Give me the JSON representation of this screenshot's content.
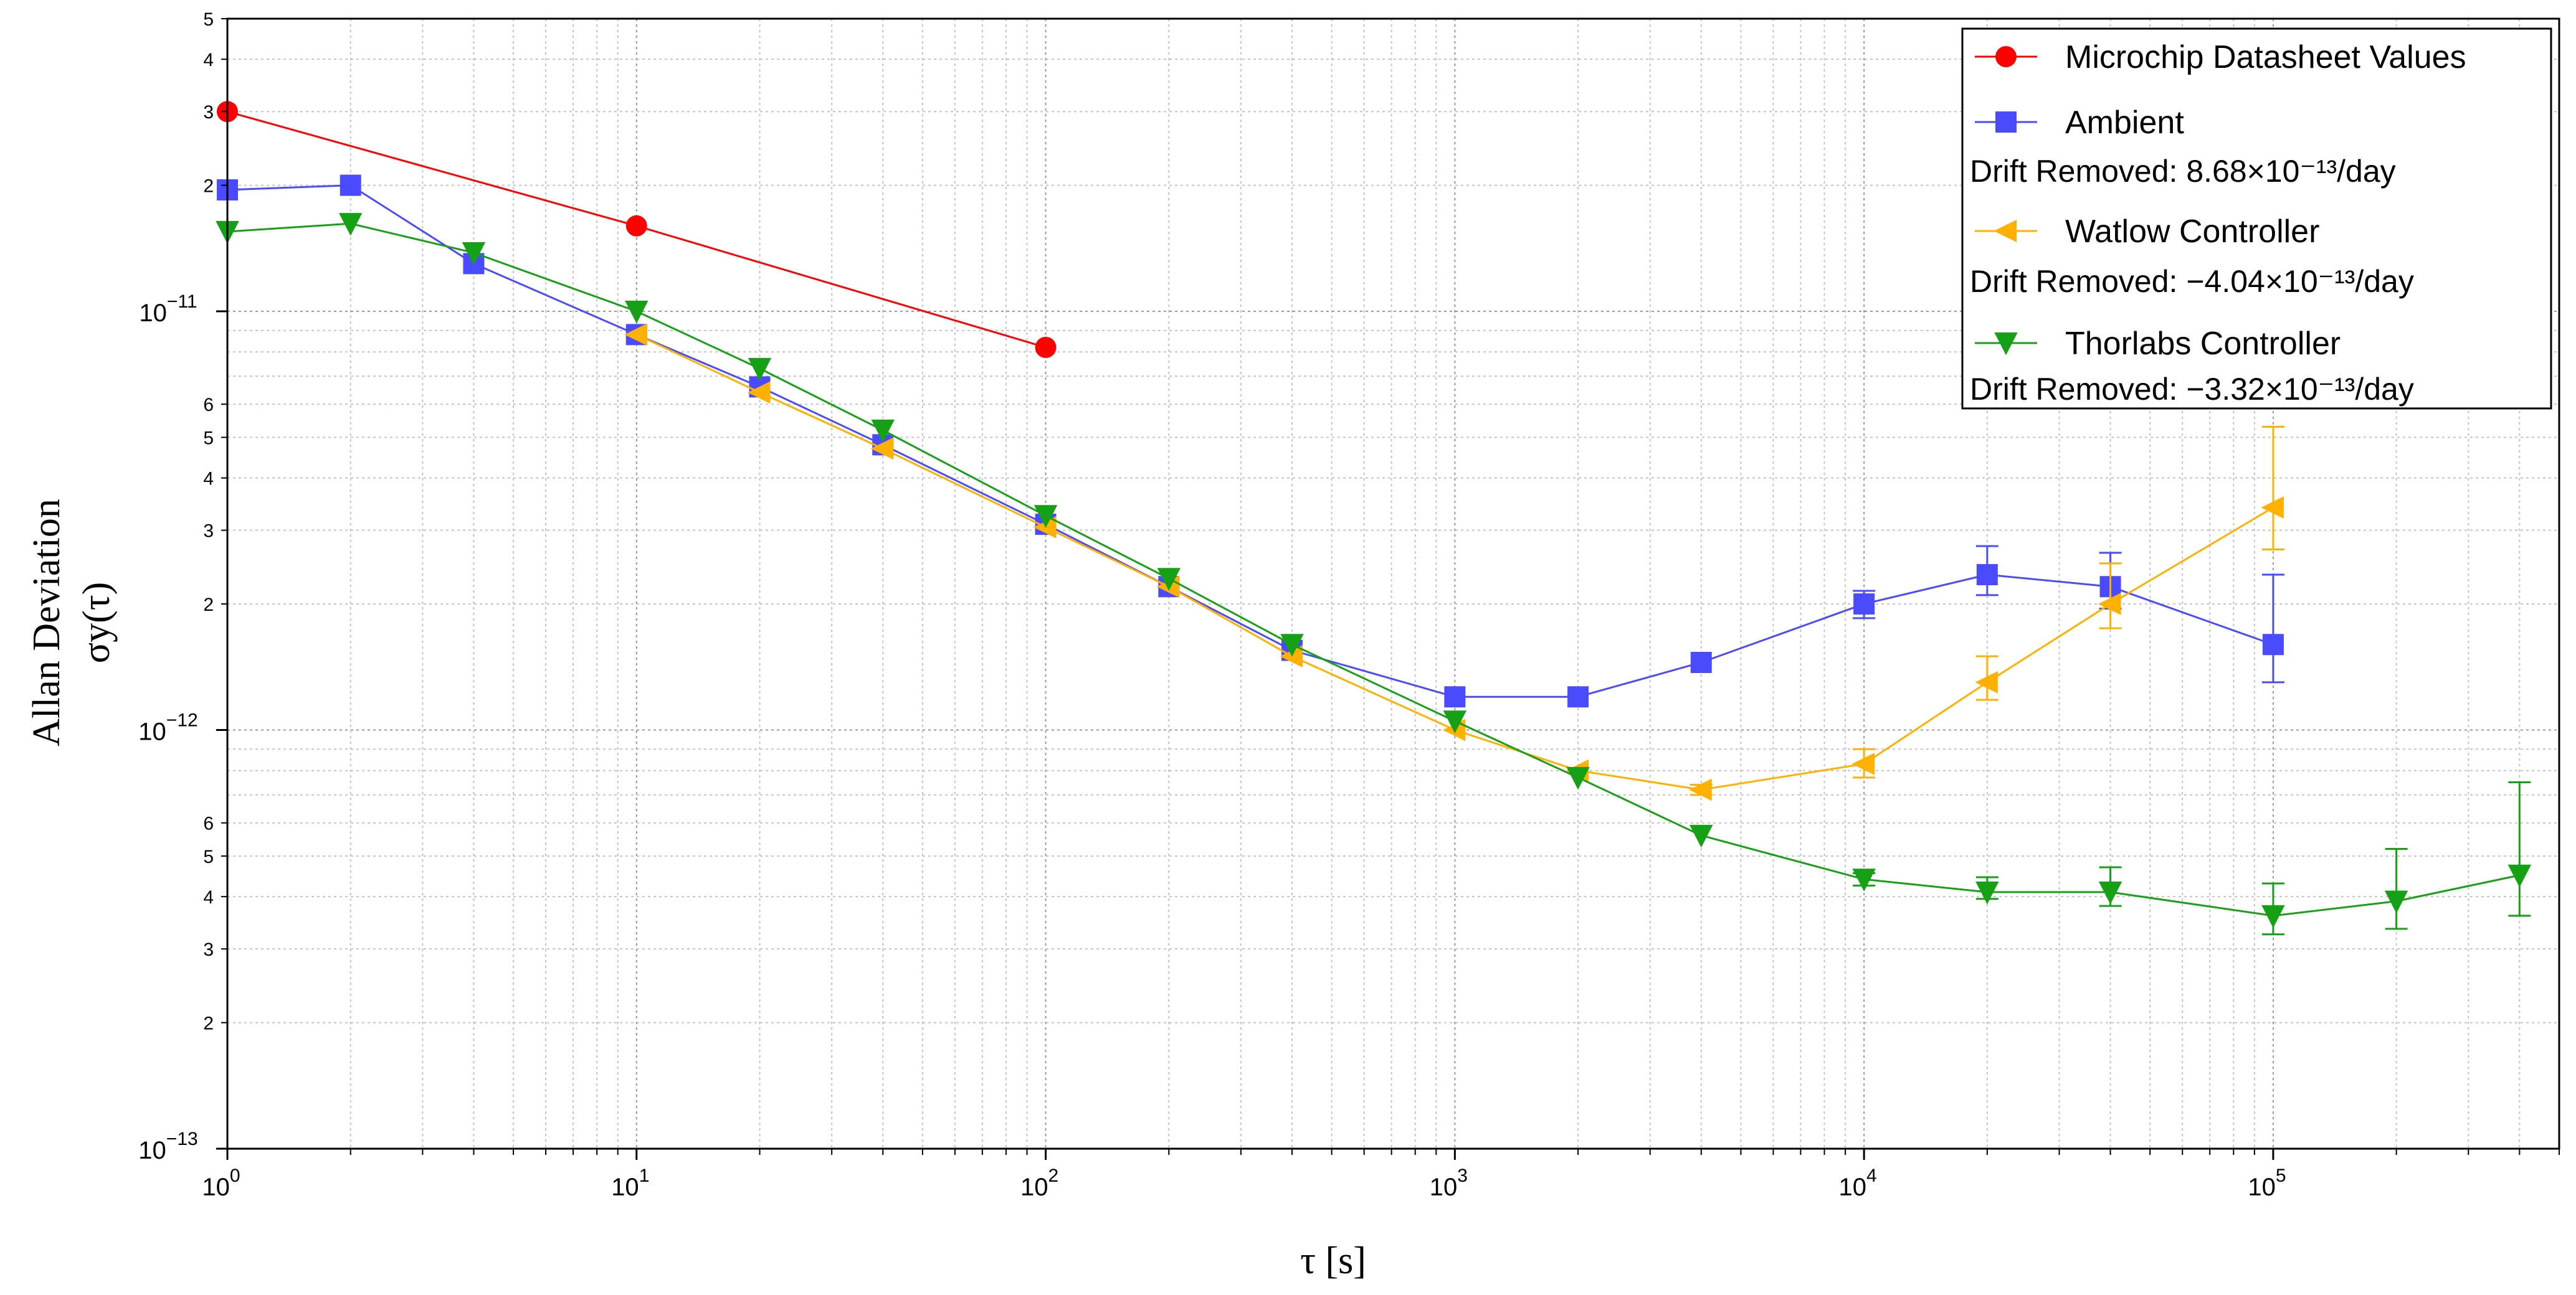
{
  "chart_data": {
    "type": "scatter",
    "title": "",
    "xlabel": "τ [s]",
    "ylabel_line1": "Allan Deviation",
    "ylabel_line2": "σy(τ)",
    "x_scale": "log",
    "y_scale": "log",
    "xlim": [
      1,
      500000
    ],
    "ylim": [
      1e-13,
      5e-11
    ],
    "grid": true,
    "legend_position": "top-right",
    "x_tick_labels": [
      "10^0",
      "10^1",
      "10^2",
      "10^3",
      "10^4",
      "10^5"
    ],
    "y_tick_labels": [
      "10^-13",
      "10^-12",
      "10^-11"
    ],
    "y_minor_tick_labels": [
      "2",
      "3",
      "4",
      "5",
      "6",
      "2",
      "3",
      "4",
      "5",
      "6",
      "2",
      "3",
      "4",
      "5"
    ],
    "series": [
      {
        "name": "Microchip Datasheet Values",
        "color": "#ff0000",
        "marker": "circle",
        "x": [
          1,
          10,
          100
        ],
        "y": [
          3e-11,
          1.6e-11,
          8.2e-12
        ]
      },
      {
        "name": "Ambient",
        "drift_note": "Drift Removed: 8.68×10⁻¹³/day",
        "color": "#4a4aff",
        "marker": "square",
        "x": [
          1,
          2,
          4,
          10,
          20,
          40,
          100,
          200,
          400,
          1000,
          2000,
          4000,
          10000,
          20000,
          40000,
          100000
        ],
        "y": [
          1.95e-11,
          2e-11,
          1.3e-11,
          8.8e-12,
          6.6e-12,
          4.8e-12,
          3.1e-12,
          2.2e-12,
          1.55e-12,
          1.2e-12,
          1.2e-12,
          1.45e-12,
          2e-12,
          2.35e-12,
          2.2e-12,
          1.6e-12
        ],
        "err_low": [
          null,
          null,
          null,
          null,
          null,
          null,
          null,
          null,
          null,
          null,
          null,
          null,
          1.85e-12,
          2.1e-12,
          1.95e-12,
          1.3e-12
        ],
        "err_high": [
          null,
          null,
          null,
          null,
          null,
          null,
          null,
          null,
          null,
          null,
          null,
          null,
          2.15e-12,
          2.75e-12,
          2.65e-12,
          2.35e-12
        ]
      },
      {
        "name": "Watlow Controller",
        "drift_note": "Drift Removed: −4.04×10⁻¹³/day",
        "color": "#ffb000",
        "marker": "triangle-left",
        "x": [
          10,
          20,
          40,
          100,
          200,
          400,
          1000,
          2000,
          4000,
          10000,
          20000,
          40000,
          100000
        ],
        "y": [
          8.8e-12,
          6.4e-12,
          4.7e-12,
          3.05e-12,
          2.2e-12,
          1.5e-12,
          1e-12,
          8e-13,
          7.2e-13,
          8.3e-13,
          1.3e-12,
          2e-12,
          3.4e-12
        ],
        "err_low": [
          null,
          null,
          null,
          null,
          null,
          null,
          null,
          null,
          7e-13,
          7.7e-13,
          1.18e-12,
          1.75e-12,
          2.7e-12
        ],
        "err_high": [
          null,
          null,
          null,
          null,
          null,
          null,
          null,
          null,
          7.4e-13,
          9e-13,
          1.5e-12,
          2.5e-12,
          5.3e-12
        ]
      },
      {
        "name": "Thorlabs Controller",
        "drift_note": "Drift Removed: −3.32×10⁻¹³/day",
        "color": "#16a016",
        "marker": "triangle-down",
        "x": [
          1,
          2,
          4,
          10,
          20,
          40,
          100,
          200,
          400,
          1000,
          2000,
          4000,
          10000,
          20000,
          40000,
          100000,
          200000,
          400000
        ],
        "y": [
          1.55e-11,
          1.62e-11,
          1.38e-11,
          1e-11,
          7.3e-12,
          5.2e-12,
          3.25e-12,
          2.3e-12,
          1.6e-12,
          1.05e-12,
          7.7e-13,
          5.6e-13,
          4.4e-13,
          4.1e-13,
          4.1e-13,
          3.6e-13,
          3.9e-13,
          4.5e-13
        ],
        "err_low": [
          null,
          null,
          null,
          null,
          null,
          null,
          null,
          null,
          null,
          null,
          null,
          null,
          4.25e-13,
          3.95e-13,
          3.8e-13,
          3.25e-13,
          3.35e-13,
          3.6e-13
        ],
        "err_high": [
          null,
          null,
          null,
          null,
          null,
          null,
          null,
          null,
          null,
          null,
          null,
          null,
          4.55e-13,
          4.45e-13,
          4.7e-13,
          4.3e-13,
          5.2e-13,
          7.5e-13
        ]
      }
    ]
  }
}
